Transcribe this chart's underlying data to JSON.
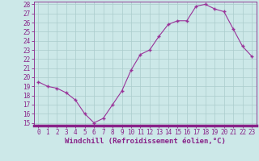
{
  "x": [
    0,
    1,
    2,
    3,
    4,
    5,
    6,
    7,
    8,
    9,
    10,
    11,
    12,
    13,
    14,
    15,
    16,
    17,
    18,
    19,
    20,
    21,
    22,
    23
  ],
  "y": [
    19.5,
    19.0,
    18.8,
    18.3,
    17.5,
    16.0,
    15.0,
    15.5,
    17.0,
    18.5,
    20.8,
    22.5,
    23.0,
    24.5,
    25.8,
    26.2,
    26.2,
    27.8,
    28.0,
    27.5,
    27.2,
    25.3,
    23.4,
    22.3
  ],
  "line_color": "#993399",
  "marker": "+",
  "marker_size": 3,
  "bg_color": "#cce8e8",
  "grid_color": "#aacccc",
  "xlabel": "Windchill (Refroidissement éolien,°C)",
  "ylim": [
    15,
    28
  ],
  "xlim": [
    -0.5,
    23.5
  ],
  "yticks": [
    15,
    16,
    17,
    18,
    19,
    20,
    21,
    22,
    23,
    24,
    25,
    26,
    27,
    28
  ],
  "xticks": [
    0,
    1,
    2,
    3,
    4,
    5,
    6,
    7,
    8,
    9,
    10,
    11,
    12,
    13,
    14,
    15,
    16,
    17,
    18,
    19,
    20,
    21,
    22,
    23
  ],
  "tick_label_fontsize": 5.5,
  "xlabel_fontsize": 6.5,
  "axis_color": "#882288",
  "spine_color": "#882288",
  "spine_bottom_color": "#882288",
  "linewidth": 0.8,
  "markerwidth": 1.0
}
